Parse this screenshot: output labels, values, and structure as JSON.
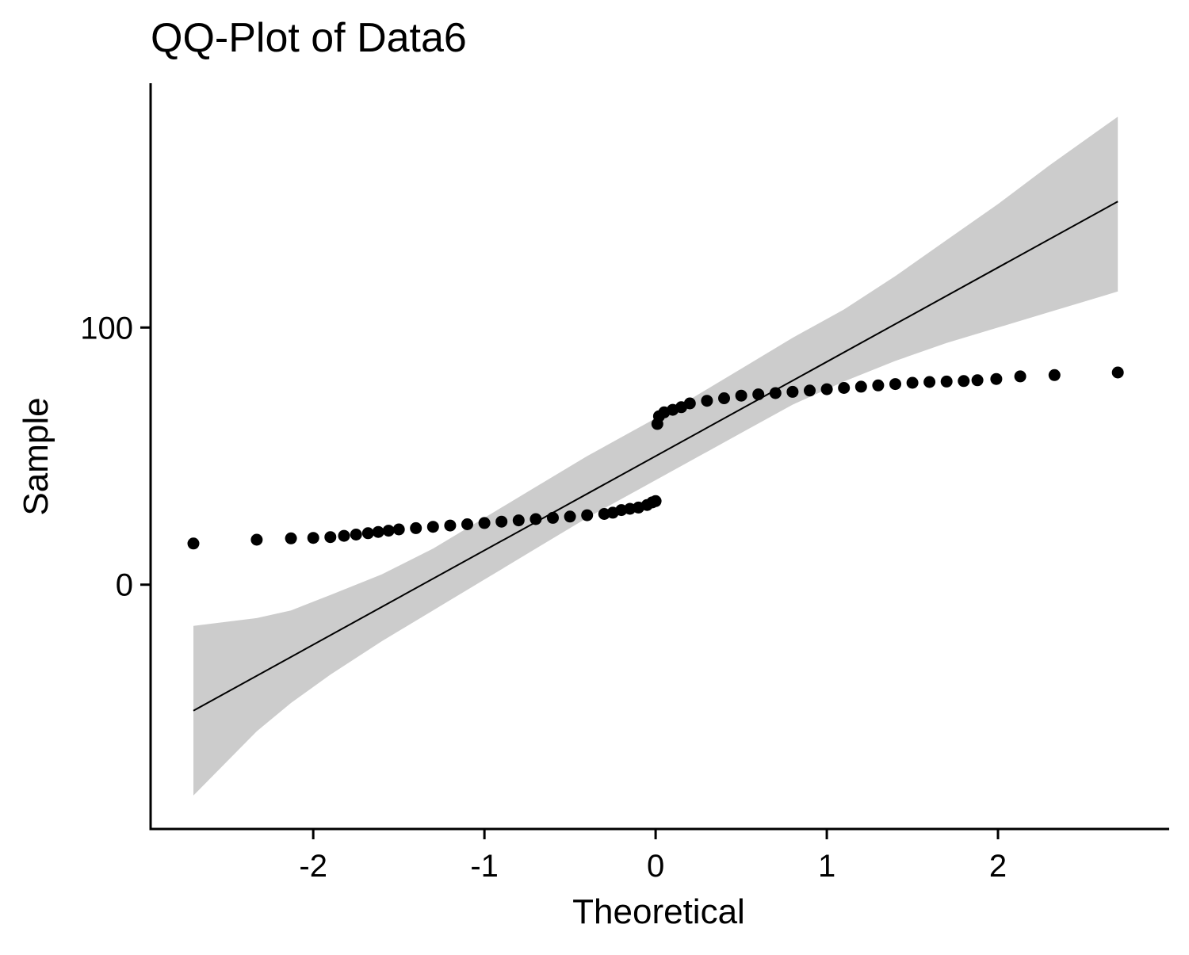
{
  "chart_data": {
    "type": "scatter",
    "title": "QQ-Plot of Data6",
    "xlabel": "Theoretical",
    "ylabel": "Sample",
    "xlim": [
      -2.95,
      3.0
    ],
    "ylim": [
      -95,
      195
    ],
    "x_ticks": [
      -2,
      -1,
      0,
      1,
      2
    ],
    "x_tick_labels": [
      "-2",
      "-1",
      "0",
      "1",
      "2"
    ],
    "y_ticks": [
      0,
      100
    ],
    "y_tick_labels": [
      "0",
      "100"
    ],
    "grid": false,
    "legend": "none",
    "colors": {
      "points": "#000000",
      "line": "#000000",
      "band": "#cccccc",
      "axis": "#000000"
    },
    "reference_line": {
      "x": [
        -2.7,
        2.7
      ],
      "y": [
        -49,
        149
      ]
    },
    "confidence_band": {
      "x": [
        -2.7,
        -2.33,
        -2.13,
        -1.9,
        -1.6,
        -1.3,
        -1.0,
        -0.7,
        -0.4,
        -0.1,
        0.2,
        0.5,
        0.8,
        1.1,
        1.4,
        1.7,
        2.0,
        2.3,
        2.7
      ],
      "lower": [
        -82,
        -57,
        -46,
        -35,
        -22,
        -10,
        2,
        14,
        26,
        37,
        48,
        59,
        70,
        79,
        87,
        94,
        100,
        106,
        114
      ],
      "upper": [
        -16,
        -13,
        -10,
        -4,
        4,
        14,
        26,
        38,
        50,
        61,
        72,
        84,
        96,
        107,
        120,
        134,
        148,
        163,
        182
      ]
    },
    "series": [
      {
        "name": "",
        "x": [
          -2.7,
          -2.33,
          -2.13,
          -2.0,
          -1.9,
          -1.82,
          -1.75,
          -1.68,
          -1.62,
          -1.56,
          -1.5,
          -1.4,
          -1.3,
          -1.2,
          -1.1,
          -1.0,
          -0.9,
          -0.8,
          -0.7,
          -0.6,
          -0.5,
          -0.4,
          -0.3,
          -0.25,
          -0.2,
          -0.15,
          -0.1,
          -0.05,
          -0.02,
          0.0,
          0.01,
          0.02,
          0.05,
          0.1,
          0.15,
          0.2,
          0.3,
          0.4,
          0.5,
          0.6,
          0.7,
          0.8,
          0.9,
          1.0,
          1.1,
          1.2,
          1.3,
          1.4,
          1.5,
          1.6,
          1.7,
          1.8,
          1.88,
          1.99,
          2.13,
          2.33,
          2.7
        ],
        "y": [
          16,
          17.5,
          18,
          18.2,
          18.5,
          19,
          19.5,
          20,
          20.5,
          21,
          21.5,
          22,
          22.5,
          23,
          23.5,
          24,
          24.5,
          25,
          25.5,
          26,
          26.5,
          27,
          27.5,
          28,
          29,
          29.5,
          30,
          31,
          32,
          32.5,
          62.5,
          65.5,
          67,
          68,
          69,
          70.5,
          71.5,
          72.5,
          73.5,
          74,
          74.5,
          75,
          75.5,
          76,
          76.5,
          77,
          77.5,
          78,
          78.5,
          78.8,
          79,
          79.2,
          79.5,
          80,
          81,
          81.5,
          82.5
        ]
      }
    ]
  }
}
